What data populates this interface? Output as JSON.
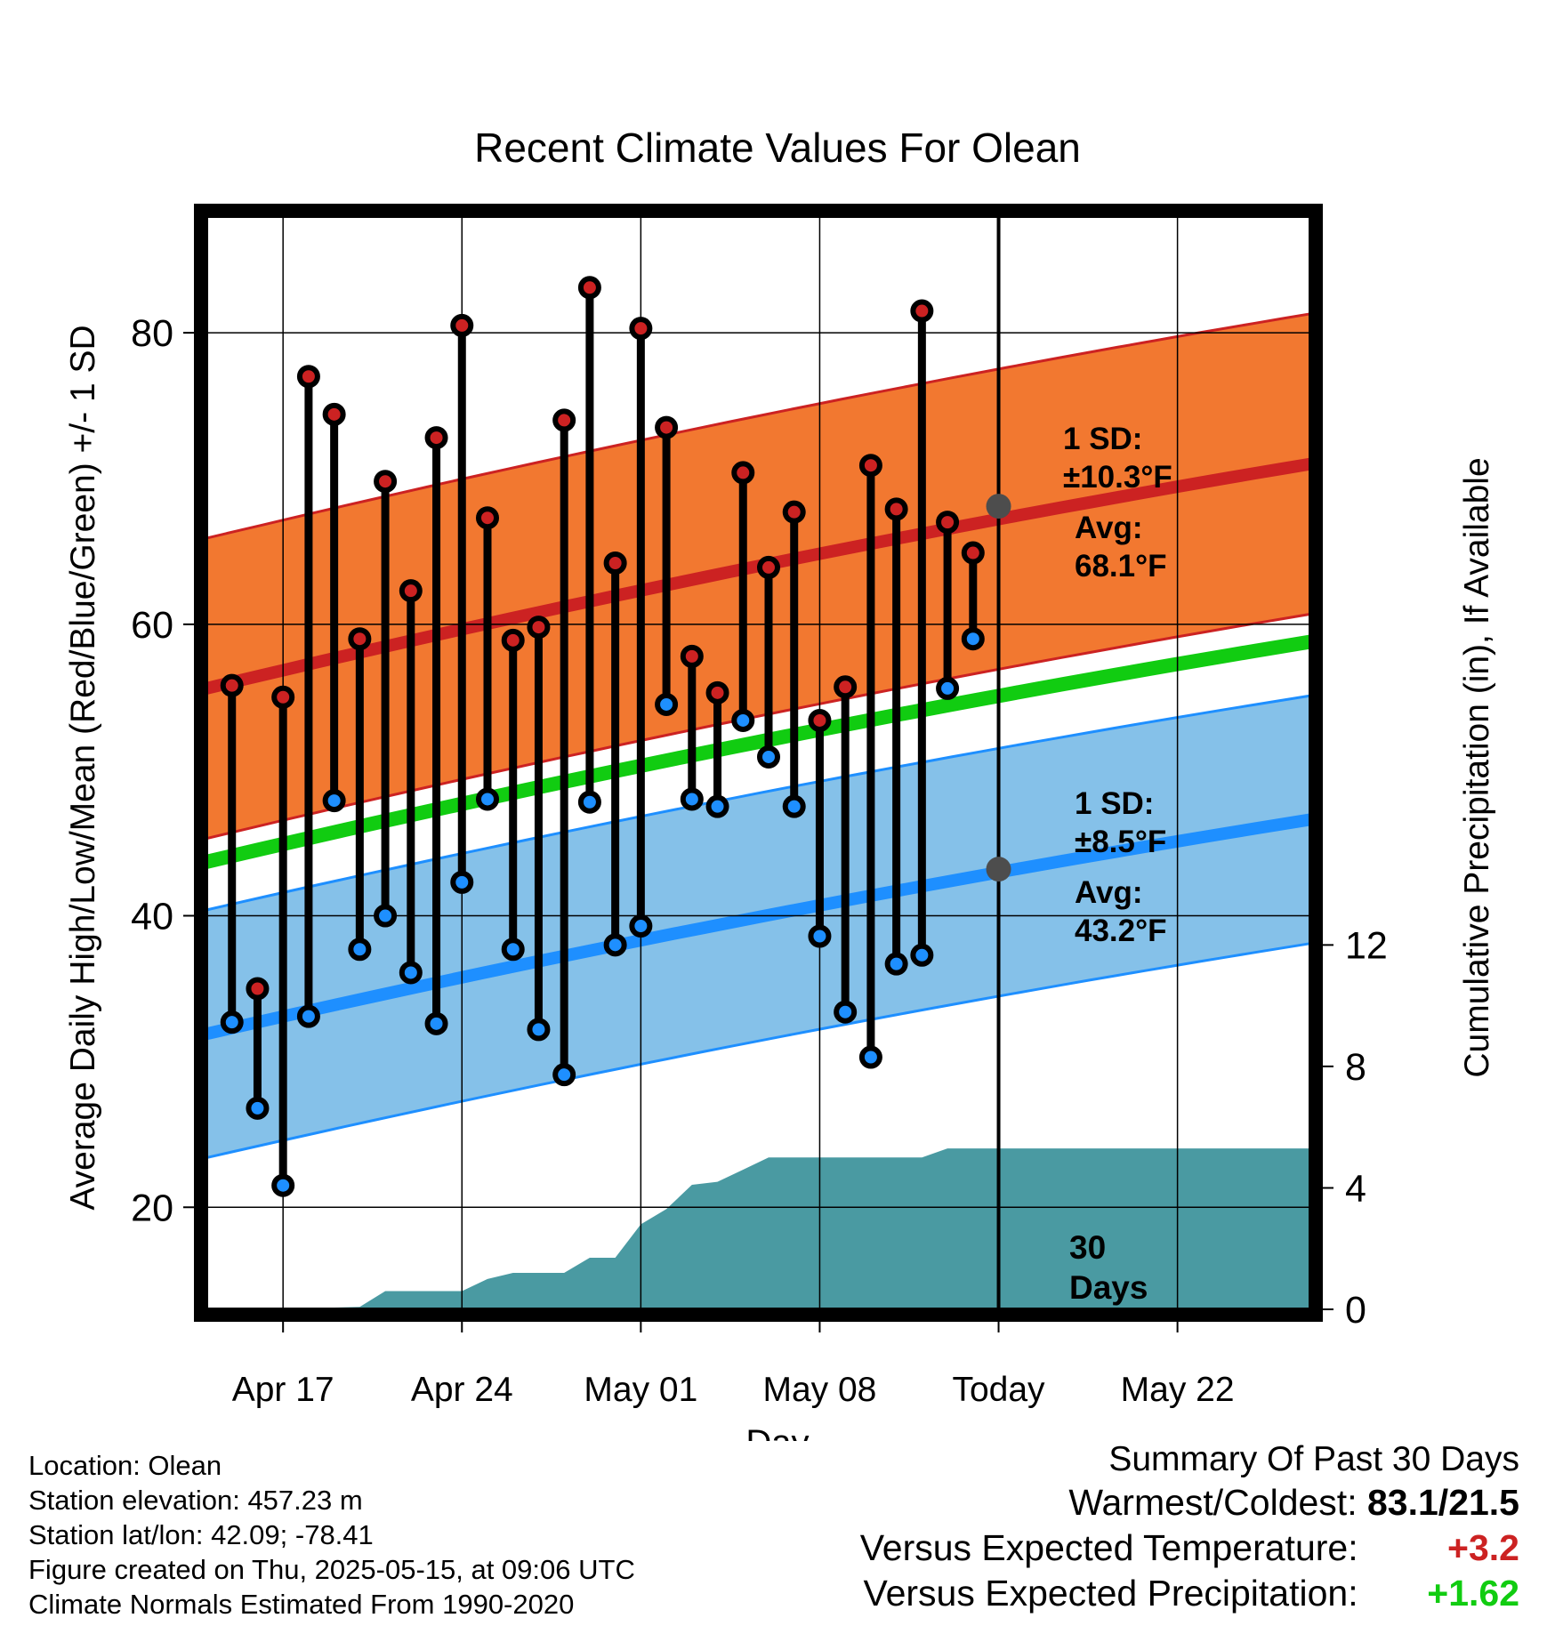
{
  "title": "Recent Climate Values For Olean",
  "chart_data": {
    "type": "line",
    "title": "Recent Climate Values For Olean",
    "xlabel": "Day",
    "ylabel_left": "Average Daily High/Low/Mean (Red/Blue/Green) +/- 1 SD",
    "ylabel_right": "Cumulative Precipitation (in), If Available",
    "ylim_left": [
      13,
      88
    ],
    "ylim_right": [
      0,
      36
    ],
    "xlim_days_from_apr14": [
      0,
      43.2
    ],
    "x_tick_labels": [
      "Apr 17",
      "Apr 24",
      "May 01",
      "May 08",
      "Today",
      "May 22"
    ],
    "x_tick_days_from_apr14": [
      3,
      10,
      17,
      24,
      31,
      38
    ],
    "y_tick_labels_left": [
      "20",
      "40",
      "60",
      "80"
    ],
    "y_ticks_left": [
      20,
      40,
      60,
      80
    ],
    "y_tick_labels_right": [
      "0",
      "4",
      "8",
      "12"
    ],
    "y_ticks_right": [
      0,
      4,
      8,
      12
    ],
    "grid": true,
    "today_day": 31,
    "daily_observations": {
      "day_offsets": [
        1,
        2,
        3,
        4,
        5,
        6,
        7,
        8,
        9,
        10,
        11,
        12,
        13,
        14,
        15,
        16,
        17,
        18,
        19,
        20,
        21,
        22,
        23,
        24,
        25,
        26,
        27,
        28,
        29,
        30
      ],
      "high": [
        55.8,
        35.0,
        55.0,
        77.0,
        74.4,
        59.0,
        69.8,
        62.3,
        72.8,
        80.5,
        67.3,
        58.9,
        59.8,
        74.0,
        83.1,
        64.2,
        80.3,
        73.5,
        57.8,
        55.3,
        70.4,
        63.9,
        67.7,
        53.4,
        55.7,
        70.9,
        67.9,
        81.5,
        67.0,
        64.9
      ],
      "low": [
        32.7,
        26.8,
        21.5,
        33.1,
        47.9,
        37.7,
        40.0,
        36.1,
        32.6,
        42.3,
        48.0,
        37.7,
        32.2,
        29.1,
        47.8,
        38.0,
        39.3,
        54.5,
        48.0,
        47.5,
        53.4,
        50.9,
        47.5,
        38.6,
        33.4,
        30.3,
        36.7,
        37.3,
        55.6,
        59.0
      ]
    },
    "normal_high": {
      "day_offsets": [
        0,
        43.2
      ],
      "avg": [
        55.6,
        71.0
      ],
      "sd": 10.3,
      "today_avg": 68.1,
      "label_sd": "1 SD:",
      "label_sd_value": "±10.3°F",
      "label_avg": "Avg:",
      "label_avg_value": "68.1°F"
    },
    "normal_low": {
      "day_offsets": [
        0,
        43.2
      ],
      "avg": [
        31.9,
        46.6
      ],
      "sd": 8.5,
      "today_avg": 43.2,
      "label_sd": "1 SD:",
      "label_sd_value": "±8.5°F",
      "label_avg": "Avg:",
      "label_avg_value": "43.2°F"
    },
    "normal_mean": {
      "day_offsets": [
        0,
        43.2
      ],
      "avg": [
        43.7,
        58.8
      ]
    },
    "cumulative_precip": {
      "day_offsets": [
        0,
        3,
        4,
        5,
        6,
        7,
        8,
        9,
        10,
        11,
        12,
        13,
        14,
        15,
        16,
        17,
        18,
        19,
        20,
        21,
        22,
        23,
        24,
        25,
        26,
        27,
        28,
        29,
        30,
        31,
        43.2
      ],
      "inches": [
        0,
        0,
        0.02,
        0.06,
        0.08,
        0.6,
        0.6,
        0.6,
        0.6,
        1.0,
        1.2,
        1.2,
        1.2,
        1.7,
        1.7,
        2.8,
        3.3,
        4.1,
        4.2,
        4.6,
        5.0,
        5.0,
        5.0,
        5.0,
        5.0,
        5.0,
        5.0,
        5.3,
        5.3,
        5.3,
        5.3
      ],
      "label_days": "30",
      "label_days_unit": "Days"
    },
    "colors": {
      "high_band": "#f27830",
      "high_line": "#cc2222",
      "low_band": "#85c1e9",
      "low_line": "#1e8fff",
      "mean_line": "#11cc11",
      "precip": "#4a9aa2",
      "high_marker": "#cc2222",
      "low_marker": "#1e8fff",
      "avg_marker": "#4d4d4d",
      "label_text": "#555555"
    }
  },
  "info": {
    "location": "Location: Olean",
    "elevation": "Station elevation: 457.23 m",
    "latlon": "Station lat/lon: 42.09; -78.41",
    "created": "Figure created on Thu, 2025-05-15, at 09:06 UTC",
    "normals": "Climate Normals Estimated From 1990-2020"
  },
  "summary": {
    "heading": "Summary Of Past 30 Days",
    "warmest_label": "Warmest/Coldest:",
    "warmest_value": "83.1/21.5",
    "temp_label": "Versus Expected Temperature:",
    "temp_value": "+3.2",
    "temp_color": "#cc2222",
    "precip_label": "Versus Expected Precipitation:",
    "precip_value": "+1.62",
    "precip_color": "#11cc11"
  }
}
